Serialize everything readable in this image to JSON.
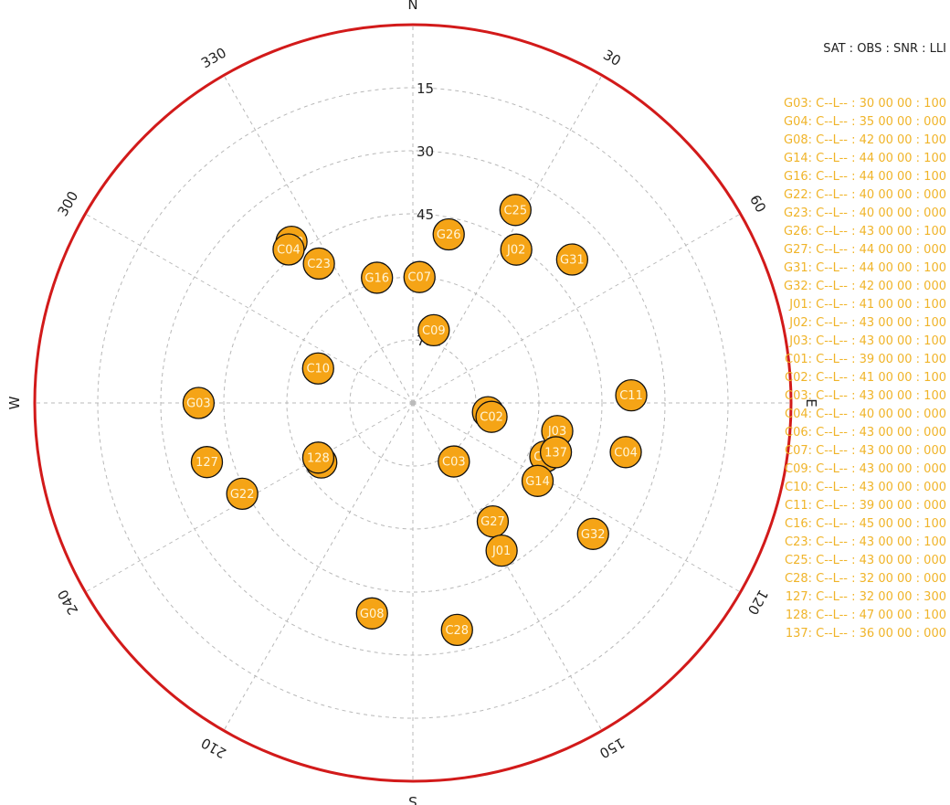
{
  "chart_data": {
    "type": "scatter",
    "projection": "polar-sky",
    "directions": [
      "N",
      "E",
      "S",
      "W"
    ],
    "azimuth_labels": [
      30,
      60,
      120,
      150,
      210,
      240,
      300,
      330
    ],
    "elevation_labels": [
      15,
      30,
      45,
      75
    ],
    "elevation_rings": [
      15,
      30,
      45,
      60,
      75
    ],
    "colors": {
      "marker": "#f5a416",
      "outer_ring": "#d21a1a",
      "legend_text": "#f0b429"
    },
    "satellites": [
      {
        "id": "G23",
        "az": 323,
        "el": 42
      },
      {
        "id": "C04",
        "az": 321,
        "el": 43
      },
      {
        "id": "C23",
        "az": 326,
        "el": 50
      },
      {
        "id": "C25",
        "az": 28,
        "el": 38
      },
      {
        "id": "G26",
        "az": 12,
        "el": 49
      },
      {
        "id": "J02",
        "az": 34,
        "el": 46
      },
      {
        "id": "G31",
        "az": 48,
        "el": 39
      },
      {
        "id": "C07",
        "az": 3,
        "el": 60
      },
      {
        "id": "G16",
        "az": 344,
        "el": 59
      },
      {
        "id": "C09",
        "az": 16,
        "el": 72
      },
      {
        "id": "C10",
        "az": 290,
        "el": 66
      },
      {
        "id": "G03",
        "az": 270,
        "el": 39
      },
      {
        "id": "127",
        "az": 254,
        "el": 39
      },
      {
        "id": "G22",
        "az": 242,
        "el": 44
      },
      {
        "id": "C06",
        "az": 237,
        "el": 64
      },
      {
        "id": "128",
        "az": 240,
        "el": 64
      },
      {
        "id": "C16",
        "az": 97,
        "el": 72
      },
      {
        "id": "C02",
        "az": 100,
        "el": 71
      },
      {
        "id": "C11",
        "az": 88,
        "el": 38
      },
      {
        "id": "J03",
        "az": 101,
        "el": 55
      },
      {
        "id": "C04",
        "az": 103,
        "el": 38
      },
      {
        "id": "C01",
        "az": 112,
        "el": 56
      },
      {
        "id": "137",
        "az": 109,
        "el": 54
      },
      {
        "id": "G14",
        "az": 122,
        "el": 55
      },
      {
        "id": "C03",
        "az": 145,
        "el": 73
      },
      {
        "id": "G27",
        "az": 146,
        "el": 56
      },
      {
        "id": "J01",
        "az": 149,
        "el": 49
      },
      {
        "id": "G32",
        "az": 126,
        "el": 37
      },
      {
        "id": "G08",
        "az": 191,
        "el": 39
      },
      {
        "id": "C28",
        "az": 169,
        "el": 35
      }
    ]
  },
  "legend": {
    "header": "SAT : OBS : SNR : LLI",
    "rows": [
      "G03: C--L-- : 30 00 00 : 100",
      "G04: C--L-- : 35 00 00 : 000",
      "G08: C--L-- : 42 00 00 : 100",
      "G14: C--L-- : 44 00 00 : 100",
      "G16: C--L-- : 44 00 00 : 100",
      "G22: C--L-- : 40 00 00 : 000",
      "G23: C--L-- : 40 00 00 : 000",
      "G26: C--L-- : 43 00 00 : 100",
      "G27: C--L-- : 44 00 00 : 000",
      "G31: C--L-- : 44 00 00 : 100",
      "G32: C--L-- : 42 00 00 : 000",
      "J01: C--L-- : 41 00 00 : 100",
      "J02: C--L-- : 43 00 00 : 100",
      "J03: C--L-- : 43 00 00 : 100",
      "C01: C--L-- : 39 00 00 : 100",
      "C02: C--L-- : 41 00 00 : 100",
      "C03: C--L-- : 43 00 00 : 100",
      "C04: C--L-- : 40 00 00 : 000",
      "C06: C--L-- : 43 00 00 : 000",
      "C07: C--L-- : 43 00 00 : 000",
      "C09: C--L-- : 43 00 00 : 000",
      "C10: C--L-- : 43 00 00 : 000",
      "C11: C--L-- : 39 00 00 : 000",
      "C16: C--L-- : 45 00 00 : 100",
      "C23: C--L-- : 43 00 00 : 100",
      "C25: C--L-- : 43 00 00 : 000",
      "C28: C--L-- : 32 00 00 : 000",
      "127: C--L-- : 32 00 00 : 300",
      "128: C--L-- : 47 00 00 : 100",
      "137: C--L-- : 36 00 00 : 000"
    ]
  }
}
